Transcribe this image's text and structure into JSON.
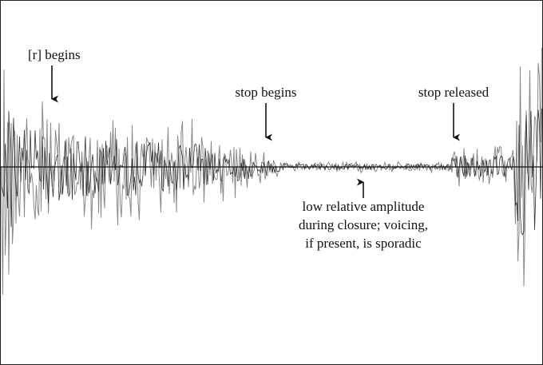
{
  "annotations": [
    {
      "lines": [
        "[r] begins"
      ]
    },
    {
      "lines": [
        "stop begins"
      ]
    },
    {
      "lines": [
        "stop released"
      ]
    },
    {
      "lines": [
        "low relative amplitude",
        "during closure; voicing,",
        "if present, is sporadic"
      ]
    }
  ]
}
